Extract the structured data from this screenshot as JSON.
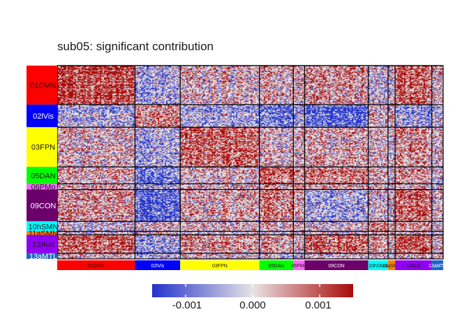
{
  "chart_data": {
    "type": "heatmap",
    "title": "sub05: significant contribution",
    "networks": [
      {
        "name": "01DMN",
        "size": 55,
        "color": "#FF0000",
        "text": "#1a1a1a"
      },
      {
        "name": "02lVis",
        "size": 32,
        "color": "#0000FF",
        "text": "#ffffff"
      },
      {
        "name": "03FPN",
        "size": 56,
        "color": "#FFFF00",
        "text": "#1a1a1a"
      },
      {
        "name": "05DAN",
        "size": 24,
        "color": "#00FF00",
        "text": "#1a1a1a"
      },
      {
        "name": "06PMo",
        "size": 8,
        "color": "#FF66FF",
        "text": "#1a1a1a"
      },
      {
        "name": "09CON",
        "size": 45,
        "color": "#6B006B",
        "text": "#ffffff"
      },
      {
        "name": "10hSMN",
        "size": 14,
        "color": "#00FFFF",
        "text": "#1a1a1a"
      },
      {
        "name": "11aSMN",
        "size": 5,
        "color": "#FF8000",
        "text": "#1a1a1a"
      },
      {
        "name": "12Aud",
        "size": 26,
        "color": "#9000F0",
        "text": "#1a1a1a"
      },
      {
        "name": "13aMTL",
        "size": 8,
        "color": "#1E64C8",
        "text": "#ffffff"
      }
    ],
    "block_mean_sign": [
      [
        0.8,
        -0.3,
        0.1,
        0.2,
        0.1,
        0.3,
        -0.2,
        0.0,
        0.6,
        0.2
      ],
      [
        -0.3,
        0.5,
        -0.3,
        -0.6,
        -0.3,
        -0.8,
        0.0,
        0.2,
        -0.4,
        -0.1
      ],
      [
        0.1,
        -0.3,
        0.6,
        0.1,
        0.1,
        0.2,
        0.0,
        0.0,
        0.3,
        0.1
      ],
      [
        0.2,
        -0.6,
        0.1,
        0.7,
        0.3,
        0.5,
        0.1,
        0.0,
        0.3,
        0.0
      ],
      [
        0.1,
        -0.3,
        0.1,
        0.3,
        0.5,
        0.2,
        0.0,
        0.0,
        0.1,
        0.0
      ],
      [
        0.3,
        -0.8,
        0.2,
        0.5,
        0.2,
        -0.3,
        -0.1,
        0.1,
        0.6,
        0.1
      ],
      [
        -0.2,
        0.0,
        0.0,
        0.1,
        0.0,
        -0.1,
        0.3,
        0.2,
        0.2,
        0.0
      ],
      [
        0.0,
        0.2,
        0.0,
        0.0,
        0.0,
        0.1,
        0.2,
        0.3,
        0.1,
        0.0
      ],
      [
        0.6,
        -0.4,
        0.3,
        0.3,
        0.1,
        0.6,
        0.2,
        0.1,
        0.7,
        0.2
      ],
      [
        0.2,
        -0.1,
        0.1,
        0.0,
        0.0,
        0.1,
        0.0,
        0.0,
        0.2,
        0.3
      ]
    ],
    "colorbar": {
      "min": -0.0015,
      "max": 0.0015,
      "ticks": [
        "-0.001",
        "0.000",
        "0.001"
      ],
      "tick_values": [
        -0.001,
        0.0,
        0.001
      ],
      "colors": [
        "#2233CC",
        "#E8E4E4",
        "#AA0A0A"
      ]
    }
  }
}
